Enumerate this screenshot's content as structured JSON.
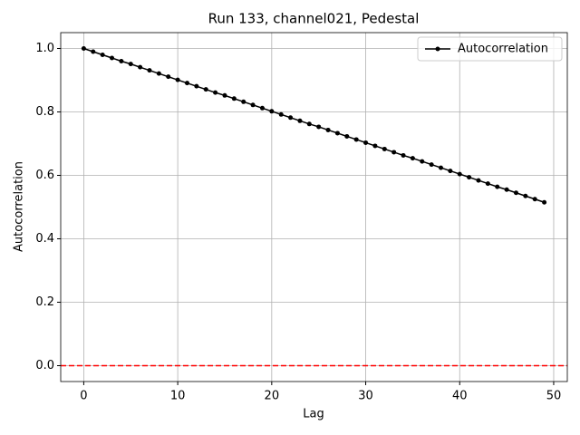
{
  "chart_data": {
    "type": "line",
    "title": "Run 133, channel021, Pedestal",
    "x_label": "Lag",
    "y_label": "Autocorrelation",
    "x": [
      0,
      1,
      2,
      3,
      4,
      5,
      6,
      7,
      8,
      9,
      10,
      11,
      12,
      13,
      14,
      15,
      16,
      17,
      18,
      19,
      20,
      21,
      22,
      23,
      24,
      25,
      26,
      27,
      28,
      29,
      30,
      31,
      32,
      33,
      34,
      35,
      36,
      37,
      38,
      39,
      40,
      41,
      42,
      43,
      44,
      45,
      46,
      47,
      48,
      49
    ],
    "series": [
      {
        "name": "Autocorrelation",
        "color": "#000000",
        "values": [
          1.0,
          0.99,
          0.98,
          0.97,
          0.96,
          0.951,
          0.941,
          0.931,
          0.921,
          0.911,
          0.901,
          0.891,
          0.881,
          0.871,
          0.861,
          0.852,
          0.842,
          0.832,
          0.822,
          0.812,
          0.802,
          0.792,
          0.782,
          0.772,
          0.762,
          0.753,
          0.743,
          0.733,
          0.723,
          0.713,
          0.703,
          0.693,
          0.683,
          0.673,
          0.663,
          0.654,
          0.644,
          0.634,
          0.624,
          0.614,
          0.604,
          0.594,
          0.584,
          0.574,
          0.564,
          0.555,
          0.545,
          0.535,
          0.525,
          0.515
        ]
      }
    ],
    "reference_line": {
      "y": 0,
      "color": "#ff0000",
      "dashed": true
    },
    "xlim": [
      -2.45,
      51.45
    ],
    "ylim": [
      -0.05,
      1.05
    ],
    "xticks": [
      0,
      10,
      20,
      30,
      40,
      50
    ],
    "yticks": [
      {
        "value": 0,
        "label": "0.0"
      },
      0.2,
      0.4,
      0.6,
      0.8,
      {
        "value": 1,
        "label": "1.0"
      }
    ],
    "grid": true,
    "legend": "upper-right"
  }
}
